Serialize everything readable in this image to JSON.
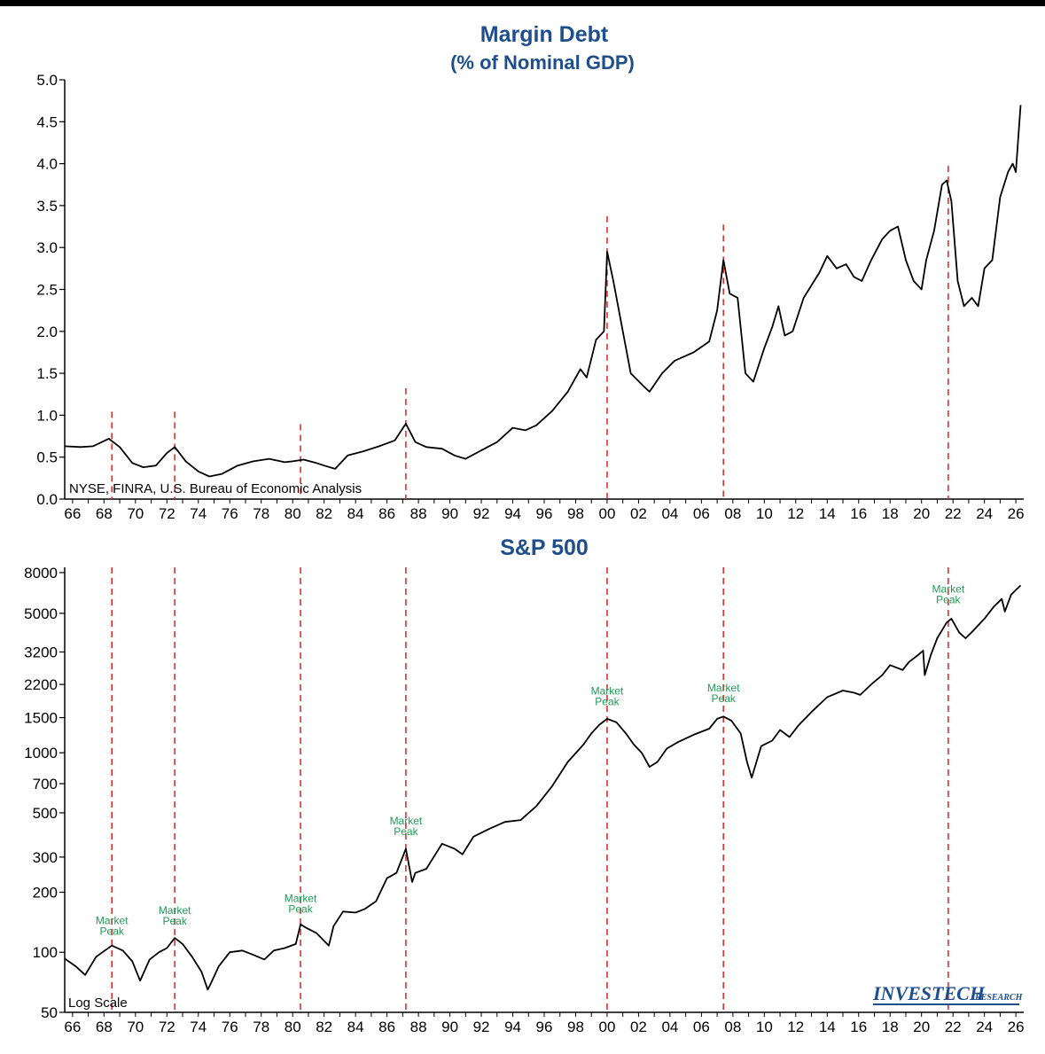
{
  "colors": {
    "title": "#1f4e8c",
    "peak_line": "#e03030",
    "annotation": "#1f9a55",
    "series": "#000000"
  },
  "chart_data": [
    {
      "type": "line",
      "title": "Margin Debt",
      "subtitle": "(% of Nominal GDP)",
      "source": "NYSE, FINRA, U.S. Bureau of Economic Analysis",
      "xlim": [
        1965.5,
        2026.5
      ],
      "ylim": [
        0,
        5
      ],
      "x_ticks": [
        "66",
        "68",
        "70",
        "72",
        "74",
        "76",
        "78",
        "80",
        "82",
        "84",
        "86",
        "88",
        "90",
        "92",
        "94",
        "96",
        "98",
        "00",
        "02",
        "04",
        "06",
        "08",
        "10",
        "12",
        "14",
        "16",
        "18",
        "20",
        "22",
        "24",
        "26"
      ],
      "y_ticks": [
        "0.0",
        "0.5",
        "1.0",
        "1.5",
        "2.0",
        "2.5",
        "3.0",
        "3.5",
        "4.0",
        "4.5",
        "5.0"
      ],
      "peak_lines_x": [
        1968.5,
        1972.5,
        1980.5,
        1987.2,
        2000.0,
        2007.4,
        2021.7
      ],
      "series": [
        {
          "x": [
            1965.5,
            1966.5,
            1967.3,
            1968.3,
            1969.0,
            1969.8,
            1970.5,
            1971.3,
            1972.0,
            1972.5,
            1973.2,
            1974.0,
            1974.7,
            1975.5,
            1976.5,
            1977.5,
            1978.5,
            1979.5,
            1980.0,
            1980.7,
            1981.5,
            1982.0,
            1982.7,
            1983.5,
            1984.5,
            1985.5,
            1986.5,
            1987.2,
            1987.8,
            1988.5,
            1989.5,
            1990.3,
            1991.0,
            1992.0,
            1993.0,
            1994.0,
            1994.8,
            1995.5,
            1996.5,
            1997.5,
            1998.3,
            1998.7,
            1999.3,
            1999.8,
            2000.0,
            2000.4,
            2000.9,
            2001.5,
            2002.3,
            2002.7,
            2003.5,
            2004.3,
            2005.5,
            2006.5,
            2007.0,
            2007.4,
            2007.8,
            2008.3,
            2008.8,
            2009.3,
            2010.0,
            2010.5,
            2010.9,
            2011.3,
            2011.8,
            2012.5,
            2013.5,
            2014.0,
            2014.6,
            2015.2,
            2015.7,
            2016.2,
            2016.8,
            2017.5,
            2018.0,
            2018.5,
            2019.0,
            2019.5,
            2020.0,
            2020.3,
            2020.8,
            2021.3,
            2021.6,
            2021.9,
            2022.3,
            2022.7,
            2023.2,
            2023.6,
            2024.0,
            2024.5,
            2025.0,
            2025.5,
            2025.8,
            2026.0,
            2026.3
          ],
          "y": [
            0.63,
            0.62,
            0.63,
            0.72,
            0.62,
            0.43,
            0.38,
            0.4,
            0.55,
            0.62,
            0.45,
            0.33,
            0.27,
            0.3,
            0.4,
            0.45,
            0.48,
            0.44,
            0.45,
            0.47,
            0.43,
            0.4,
            0.36,
            0.52,
            0.57,
            0.63,
            0.7,
            0.9,
            0.68,
            0.62,
            0.6,
            0.52,
            0.48,
            0.58,
            0.68,
            0.85,
            0.82,
            0.88,
            1.05,
            1.28,
            1.55,
            1.45,
            1.9,
            2.0,
            2.95,
            2.6,
            2.1,
            1.5,
            1.35,
            1.28,
            1.5,
            1.65,
            1.75,
            1.88,
            2.25,
            2.85,
            2.45,
            2.4,
            1.5,
            1.4,
            1.8,
            2.05,
            2.3,
            1.95,
            2.0,
            2.4,
            2.7,
            2.9,
            2.75,
            2.8,
            2.65,
            2.6,
            2.85,
            3.1,
            3.2,
            3.25,
            2.85,
            2.6,
            2.5,
            2.85,
            3.2,
            3.75,
            3.8,
            3.55,
            2.6,
            2.3,
            2.4,
            2.3,
            2.75,
            2.85,
            3.6,
            3.9,
            4.0,
            3.9,
            4.7
          ]
        }
      ]
    },
    {
      "type": "line",
      "title": "S&P 500",
      "scale": "log",
      "note": "Log Scale",
      "xlim": [
        1965.5,
        2026.5
      ],
      "ylim": [
        50,
        8500
      ],
      "x_ticks": [
        "66",
        "68",
        "70",
        "72",
        "74",
        "76",
        "78",
        "80",
        "82",
        "84",
        "86",
        "88",
        "90",
        "92",
        "94",
        "96",
        "98",
        "00",
        "02",
        "04",
        "06",
        "08",
        "10",
        "12",
        "14",
        "16",
        "18",
        "20",
        "22",
        "24",
        "26"
      ],
      "y_ticks": [
        "50",
        "100",
        "200",
        "300",
        "500",
        "700",
        "1000",
        "1500",
        "2200",
        "3200",
        "5000",
        "8000"
      ],
      "peak_lines_x": [
        1968.5,
        1972.5,
        1980.5,
        1987.2,
        2000.0,
        2007.4,
        2021.7
      ],
      "annotations": [
        {
          "x": 1968.5,
          "y": 120,
          "line1": "Market",
          "line2": "Peak"
        },
        {
          "x": 1972.5,
          "y": 135,
          "line1": "Market",
          "line2": "Peak"
        },
        {
          "x": 1980.5,
          "y": 155,
          "line1": "Market",
          "line2": "Peak"
        },
        {
          "x": 1987.2,
          "y": 380,
          "line1": "Market",
          "line2": "Peak"
        },
        {
          "x": 2000.0,
          "y": 1700,
          "line1": "Market",
          "line2": "Peak"
        },
        {
          "x": 2007.4,
          "y": 1760,
          "line1": "Market",
          "line2": "Peak"
        },
        {
          "x": 2021.7,
          "y": 5500,
          "line1": "Market",
          "line2": "Peak"
        }
      ],
      "series": [
        {
          "x": [
            1965.5,
            1966.2,
            1966.8,
            1967.5,
            1968.5,
            1969.2,
            1969.8,
            1970.3,
            1970.9,
            1971.5,
            1972.0,
            1972.5,
            1973.0,
            1973.6,
            1974.2,
            1974.6,
            1974.8,
            1975.3,
            1976.0,
            1976.8,
            1977.5,
            1978.2,
            1978.8,
            1979.5,
            1980.2,
            1980.5,
            1980.9,
            1981.5,
            1982.3,
            1982.6,
            1983.2,
            1984.0,
            1984.6,
            1985.3,
            1986.0,
            1986.6,
            1987.2,
            1987.6,
            1987.8,
            1988.5,
            1989.5,
            1990.3,
            1990.8,
            1991.5,
            1992.5,
            1993.5,
            1994.5,
            1995.5,
            1996.5,
            1997.5,
            1998.5,
            1999.0,
            1999.5,
            2000.0,
            2000.6,
            2001.2,
            2001.7,
            2002.2,
            2002.7,
            2003.2,
            2003.8,
            2004.5,
            2005.5,
            2006.5,
            2007.0,
            2007.4,
            2007.9,
            2008.5,
            2008.9,
            2009.2,
            2009.8,
            2010.5,
            2011.0,
            2011.6,
            2012.2,
            2013.0,
            2014.0,
            2015.0,
            2015.7,
            2016.1,
            2016.8,
            2017.5,
            2018.0,
            2018.8,
            2019.2,
            2019.8,
            2020.1,
            2020.2,
            2020.6,
            2021.0,
            2021.6,
            2021.9,
            2022.4,
            2022.8,
            2023.3,
            2024.0,
            2024.6,
            2025.1,
            2025.3,
            2025.7,
            2026.3
          ],
          "y": [
            93,
            85,
            77,
            95,
            108,
            102,
            90,
            72,
            92,
            100,
            105,
            118,
            110,
            95,
            80,
            65,
            70,
            85,
            100,
            102,
            97,
            92,
            102,
            105,
            110,
            138,
            132,
            125,
            108,
            135,
            160,
            158,
            165,
            180,
            235,
            250,
            330,
            225,
            250,
            262,
            350,
            330,
            310,
            380,
            415,
            450,
            460,
            540,
            680,
            900,
            1100,
            1250,
            1380,
            1480,
            1420,
            1250,
            1100,
            1000,
            850,
            900,
            1050,
            1130,
            1230,
            1320,
            1480,
            1520,
            1450,
            1250,
            900,
            750,
            1080,
            1150,
            1300,
            1200,
            1380,
            1600,
            1900,
            2050,
            2000,
            1950,
            2200,
            2450,
            2750,
            2600,
            2850,
            3100,
            3250,
            2450,
            3100,
            3750,
            4500,
            4700,
            4000,
            3750,
            4100,
            4700,
            5400,
            5900,
            5100,
            6200,
            6900
          ]
        }
      ]
    }
  ],
  "logo": {
    "text": "INVESTECH",
    "sub": "RESEARCH"
  }
}
